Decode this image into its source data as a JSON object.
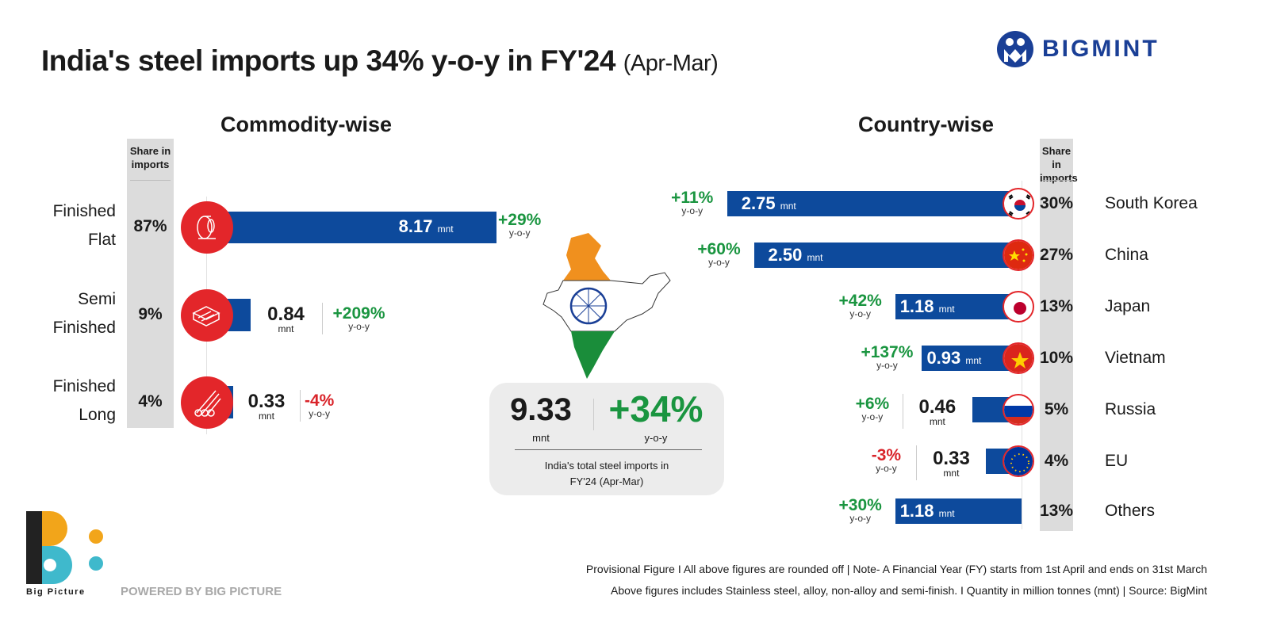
{
  "header": {
    "title": "India's steel imports up 34% y-o-y in FY'24",
    "title_suffix": "(Apr-Mar)",
    "brand": "BIGMINT"
  },
  "colors": {
    "bar": "#0d4a9c",
    "positive": "#1a9540",
    "negative": "#d9242a",
    "icon_circle": "#e3262a",
    "share_column": "#dcdcdc"
  },
  "chart_data": [
    {
      "type": "bar",
      "title": "Commodity-wise",
      "orientation": "horizontal",
      "unit": "mnt",
      "share_header": "Share in imports",
      "yoy_label": "y-o-y",
      "categories": [
        "Finished Flat",
        "Semi Finished",
        "Finished Long"
      ],
      "category_lines": [
        [
          "Finished",
          "Flat"
        ],
        [
          "Semi",
          "Finished"
        ],
        [
          "Finished",
          "Long"
        ]
      ],
      "values": [
        8.17,
        0.84,
        0.33
      ],
      "value_labels": [
        "8.17",
        "0.84",
        "0.33"
      ],
      "share": [
        "87%",
        "9%",
        "4%"
      ],
      "yoy": [
        "+29%",
        "+209%",
        "-4%"
      ],
      "icons": [
        "steel-coil-icon",
        "steel-billets-icon",
        "steel-bars-icon"
      ]
    },
    {
      "type": "bar",
      "title": "Country-wise",
      "orientation": "horizontal",
      "unit": "mnt",
      "share_header": "Share in imports",
      "yoy_label": "y-o-y",
      "categories": [
        "South Korea",
        "China",
        "Japan",
        "Vietnam",
        "Russia",
        "EU",
        "Others"
      ],
      "values": [
        2.75,
        2.5,
        1.18,
        0.93,
        0.46,
        0.33,
        1.18
      ],
      "value_labels": [
        "2.75",
        "2.50",
        "1.18",
        "0.93",
        "0.46",
        "0.33",
        "1.18"
      ],
      "share": [
        "30%",
        "27%",
        "13%",
        "10%",
        "5%",
        "4%",
        "13%"
      ],
      "yoy": [
        "+11%",
        "+60%",
        "+42%",
        "+137%",
        "+6%",
        "-3%",
        "+30%"
      ],
      "icons": [
        "south-korea-flag-icon",
        "china-flag-icon",
        "japan-flag-icon",
        "vietnam-flag-icon",
        "russia-flag-icon",
        "eu-flag-icon",
        ""
      ]
    }
  ],
  "total": {
    "value": "9.33",
    "unit": "mnt",
    "yoy": "+34%",
    "yoy_label": "y-o-y",
    "caption_line1": "India's total steel imports in",
    "caption_line2": "FY'24 (Apr-Mar)"
  },
  "footer": {
    "logo_text": "Big Picture",
    "powered": "POWERED BY BIG PICTURE",
    "note1": "Provisional Figure  I  All above figures are rounded off | Note- A Financial Year (FY) starts from 1st April and ends on 31st March",
    "note2": "Above figures includes Stainless steel, alloy, non-alloy and semi-finish. I Quantity in million tonnes (mnt) | Source: BigMint"
  }
}
